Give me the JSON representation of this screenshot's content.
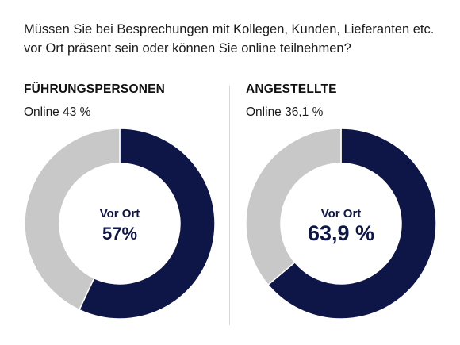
{
  "question": "Müssen Sie bei Besprechungen mit Kollegen, Kunden, Lieferanten etc. vor Ort präsent sein oder können Sie online teilnehmen?",
  "colors": {
    "vor_ort": "#0e1547",
    "online": "#c8c8c8"
  },
  "chart_data": [
    {
      "type": "pie",
      "title": "FÜHRUNGSPERSONEN",
      "online_label": "Online 43 %",
      "center_caption": "Vor Ort",
      "center_value": "57%",
      "slices": [
        {
          "name": "Vor Ort",
          "value": 57
        },
        {
          "name": "Online",
          "value": 43
        }
      ]
    },
    {
      "type": "pie",
      "title": "ANGESTELLTE",
      "online_label": "Online 36,1 %",
      "center_caption": "Vor Ort",
      "center_value": "63,9 %",
      "slices": [
        {
          "name": "Vor Ort",
          "value": 63.9
        },
        {
          "name": "Online",
          "value": 36.1
        }
      ]
    }
  ]
}
